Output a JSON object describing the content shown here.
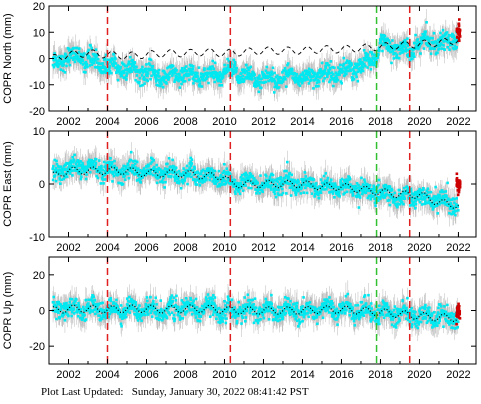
{
  "chart_data": [
    {
      "type": "scatter",
      "ylabel": "COPR North (mm)",
      "xlim": [
        2001.0,
        2022.9
      ],
      "ylim": [
        -20,
        20
      ],
      "xticks": [
        2002,
        2004,
        2006,
        2008,
        2010,
        2012,
        2014,
        2016,
        2018,
        2020,
        2022
      ],
      "yticks": [
        -20,
        -10,
        0,
        10,
        20
      ],
      "grid": false,
      "series": [
        {
          "color": "#00e8f0",
          "error_color": "#a8a8a8",
          "x": [
            2001.2,
            2002.0,
            2003.0,
            2004.0,
            2005.0,
            2006.0,
            2007.0,
            2008.0,
            2009.0,
            2010.0,
            2010.3,
            2011.0,
            2012.0,
            2013.0,
            2014.0,
            2015.0,
            2016.0,
            2016.5,
            2017.0,
            2017.5,
            2017.8,
            2018.0,
            2018.5,
            2019.0,
            2019.5,
            2020.0,
            2020.5,
            2021.0,
            2021.5,
            2022.0
          ],
          "y": [
            -2,
            1,
            0,
            -3,
            -4,
            -6,
            -7,
            -6,
            -7,
            -6,
            -4,
            -6,
            -8,
            -7,
            -7,
            -6,
            -5,
            -4,
            -3,
            -1,
            0,
            6,
            5,
            4,
            2,
            6,
            7,
            6,
            7,
            8
          ]
        },
        {
          "color": "#000000",
          "style": "dashed",
          "x": [
            2001.2,
            2002.0,
            2003.0,
            2004.0,
            2005.0,
            2006.0,
            2007.0,
            2008.0,
            2009.0,
            2010.0,
            2011.0,
            2012.0,
            2013.0,
            2014.0,
            2015.0,
            2016.0,
            2017.0,
            2018.0,
            2019.0,
            2020.0,
            2021.0,
            2022.0
          ],
          "y": [
            0,
            1.5,
            2,
            1.5,
            1,
            1.5,
            2,
            2,
            2.5,
            2,
            2.5,
            3,
            3,
            3,
            3.5,
            3.5,
            4,
            4.5,
            5,
            5.5,
            6,
            7
          ]
        },
        {
          "color": "#cc0000",
          "x": [
            2021.9,
            2022.0,
            2022.1
          ],
          "y": [
            10,
            11,
            9
          ]
        }
      ],
      "vlines": [
        {
          "x": 2004.0,
          "color": "#e02020"
        },
        {
          "x": 2010.3,
          "color": "#e02020"
        },
        {
          "x": 2017.8,
          "color": "#30c030"
        },
        {
          "x": 2019.5,
          "color": "#e02020"
        }
      ]
    },
    {
      "type": "scatter",
      "ylabel": "COPR East (mm)",
      "xlim": [
        2001.0,
        2022.9
      ],
      "ylim": [
        -10,
        10
      ],
      "xticks": [
        2002,
        2004,
        2006,
        2008,
        2010,
        2012,
        2014,
        2016,
        2018,
        2020,
        2022
      ],
      "yticks": [
        -10,
        0,
        10
      ],
      "grid": false,
      "series": [
        {
          "color": "#00e8f0",
          "error_color": "#a8a8a8",
          "x": [
            2001.2,
            2002.0,
            2003.0,
            2004.0,
            2005.0,
            2006.0,
            2007.0,
            2008.0,
            2009.0,
            2010.0,
            2010.3,
            2011.0,
            2012.0,
            2013.0,
            2014.0,
            2015.0,
            2016.0,
            2017.0,
            2018.0,
            2019.0,
            2020.0,
            2021.0,
            2022.0
          ],
          "y": [
            2,
            3,
            3,
            2.5,
            2.5,
            2.5,
            2,
            2,
            1.5,
            1.5,
            0,
            0.5,
            0,
            0,
            0,
            -0.5,
            -0.5,
            -1,
            -2,
            -2.5,
            -2,
            -3,
            -4
          ]
        },
        {
          "color": "#000000",
          "style": "dotted",
          "x": [
            2001.2,
            2002.0,
            2003.0,
            2004.0,
            2005.0,
            2006.0,
            2007.0,
            2008.0,
            2009.0,
            2010.0,
            2010.3,
            2011.0,
            2012.0,
            2013.0,
            2014.0,
            2015.0,
            2016.0,
            2017.0,
            2018.0,
            2019.0,
            2020.0,
            2021.0,
            2022.0
          ],
          "y": [
            1.5,
            2.5,
            2.5,
            2.5,
            2.5,
            2,
            2,
            2,
            1.5,
            1.5,
            0,
            0,
            0,
            0,
            0,
            -0.5,
            -0.5,
            -1,
            -1.5,
            -2,
            -2,
            -3.5,
            -4
          ]
        },
        {
          "color": "#cc0000",
          "x": [
            2021.9,
            2022.0,
            2022.1
          ],
          "y": [
            1,
            -1,
            0
          ]
        }
      ],
      "vlines": [
        {
          "x": 2004.0,
          "color": "#e02020"
        },
        {
          "x": 2010.3,
          "color": "#e02020"
        },
        {
          "x": 2017.8,
          "color": "#30c030"
        },
        {
          "x": 2019.5,
          "color": "#e02020"
        }
      ]
    },
    {
      "type": "scatter",
      "ylabel": "COPR Up (mm)",
      "xlim": [
        2001.0,
        2022.9
      ],
      "ylim": [
        -30,
        30
      ],
      "xticks": [
        2002,
        2004,
        2006,
        2008,
        2010,
        2012,
        2014,
        2016,
        2018,
        2020,
        2022
      ],
      "yticks": [
        -20,
        0,
        20
      ],
      "grid": false,
      "series": [
        {
          "color": "#00e8f0",
          "error_color": "#a8a8a8",
          "x": [
            2001.2,
            2002.0,
            2003.0,
            2004.0,
            2005.0,
            2006.0,
            2007.0,
            2008.0,
            2009.0,
            2010.0,
            2011.0,
            2012.0,
            2013.0,
            2014.0,
            2015.0,
            2016.0,
            2017.0,
            2018.0,
            2019.0,
            2020.0,
            2021.0,
            2022.0
          ],
          "y": [
            0,
            1,
            1,
            0,
            1,
            1,
            0,
            1,
            1,
            0,
            0,
            0,
            0,
            0,
            1,
            1,
            0,
            -1,
            -2,
            -3,
            -4,
            -4
          ]
        },
        {
          "color": "#000000",
          "style": "dotted",
          "x": [
            2001.2,
            2002.0,
            2003.0,
            2004.0,
            2005.0,
            2006.0,
            2007.0,
            2008.0,
            2009.0,
            2010.0,
            2011.0,
            2012.0,
            2013.0,
            2014.0,
            2015.0,
            2016.0,
            2017.0,
            2018.0,
            2019.0,
            2020.0,
            2021.0,
            2022.0
          ],
          "y": [
            0,
            1,
            1,
            0.5,
            1,
            1,
            0.5,
            1,
            1,
            0.5,
            0,
            0,
            0,
            0,
            0.5,
            0.5,
            0,
            -1,
            -2,
            -3,
            -4,
            -4
          ]
        },
        {
          "color": "#cc0000",
          "x": [
            2021.9,
            2022.0,
            2022.1
          ],
          "y": [
            -3,
            2,
            -5
          ]
        }
      ],
      "vlines": [
        {
          "x": 2004.0,
          "color": "#e02020"
        },
        {
          "x": 2010.3,
          "color": "#e02020"
        },
        {
          "x": 2017.8,
          "color": "#30c030"
        },
        {
          "x": 2019.5,
          "color": "#e02020"
        }
      ]
    }
  ],
  "footer": {
    "label": "Plot Last Updated:",
    "timestamp": "Sunday, January 30, 2022 08:41:42 PST"
  }
}
